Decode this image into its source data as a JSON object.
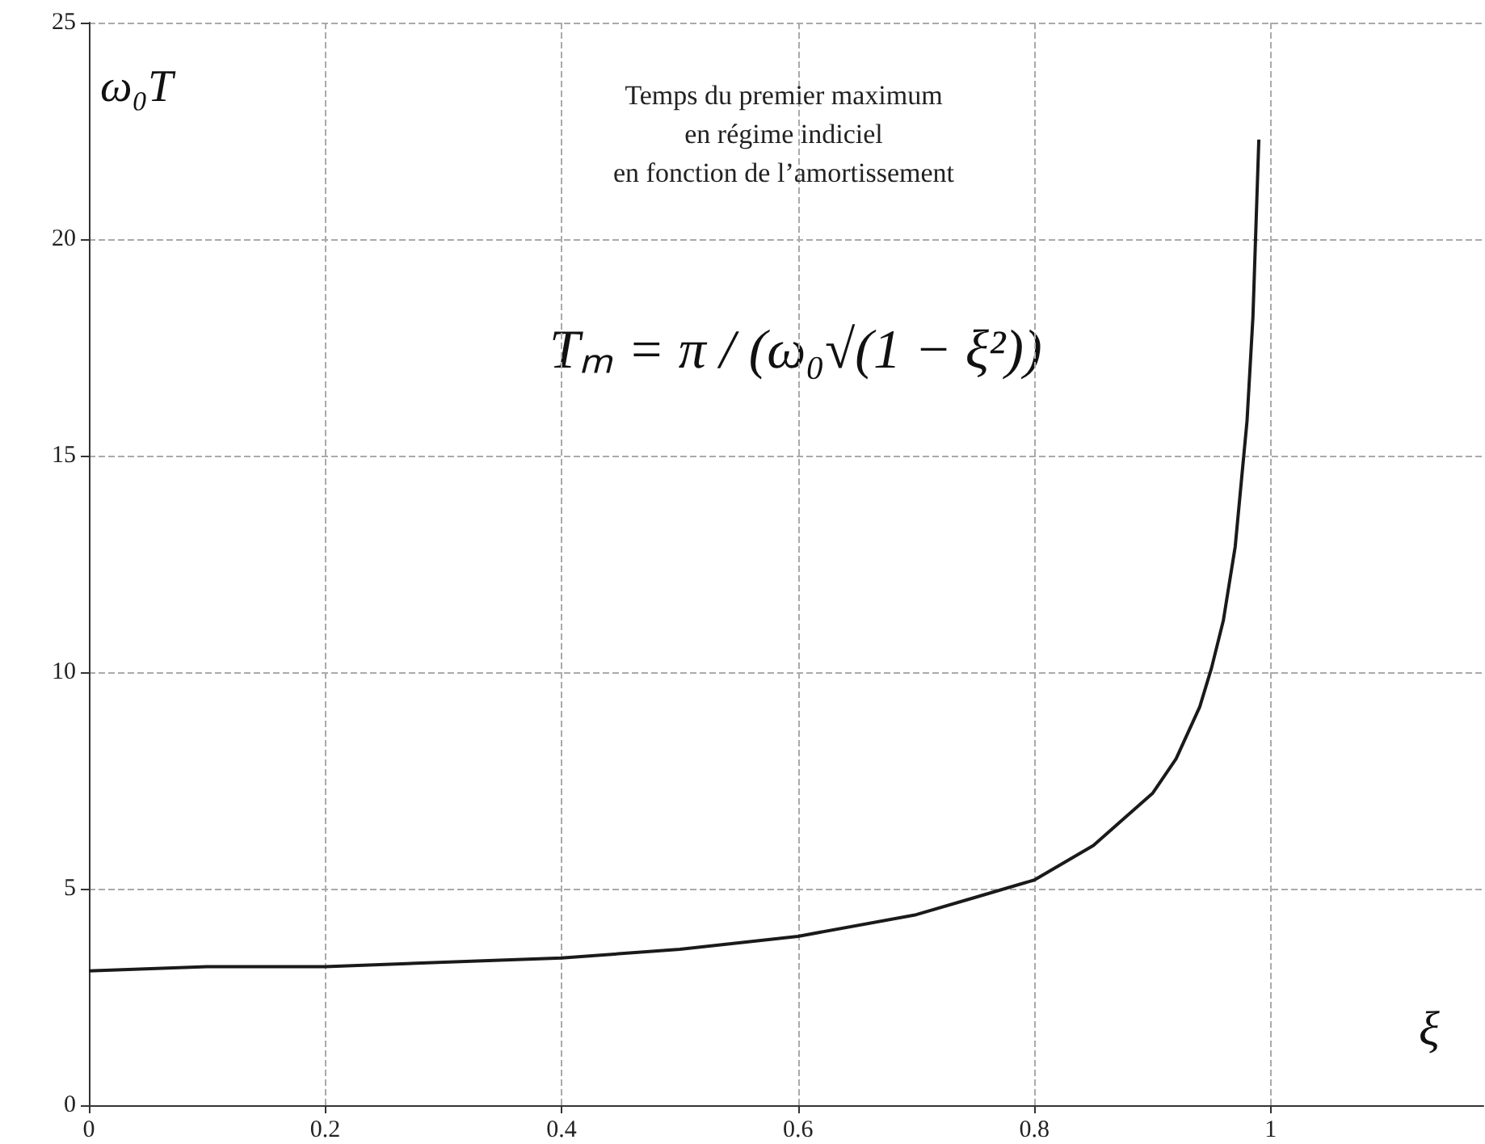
{
  "chart_data": {
    "type": "line",
    "title": "Temps du premier maximum\nen régime indiciel\nen fonction de l’amortissement",
    "xlabel": "ξ",
    "ylabel": "ω₀T",
    "annotations": [
      "Tₘ = π / (ω₀√(1 − ξ²))"
    ],
    "x": [
      0,
      0.1,
      0.2,
      0.3,
      0.4,
      0.5,
      0.6,
      0.7,
      0.75,
      0.8,
      0.85,
      0.9,
      0.92,
      0.94,
      0.95,
      0.96,
      0.97,
      0.98,
      0.985,
      0.99
    ],
    "series": [
      {
        "color": "#1a1a1a",
        "values": [
          3.1,
          3.2,
          3.2,
          3.3,
          3.4,
          3.6,
          3.9,
          4.4,
          4.8,
          5.2,
          6.0,
          7.2,
          8.0,
          9.2,
          10.1,
          11.2,
          12.9,
          15.8,
          18.2,
          22.3
        ]
      }
    ],
    "xlim": [
      0,
      1.18
    ],
    "xticks": [
      0,
      0.2,
      0.4,
      0.6,
      0.8,
      1
    ],
    "ylim": [
      0,
      25
    ],
    "yticks": [
      0,
      5,
      10,
      15,
      20,
      25
    ],
    "grid": true,
    "marker": "none",
    "line_style": "solid"
  }
}
